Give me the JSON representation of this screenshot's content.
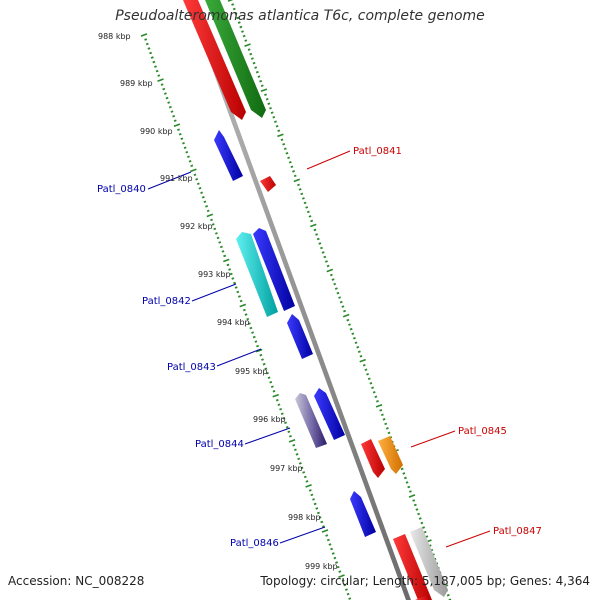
{
  "title": "Pseudoalteromonas atlantica T6c, complete genome",
  "footer": {
    "accession": "Accession: NC_008228",
    "summary": "Topology: circular; Length: 5,187,005 bp; Genes: 4,364"
  },
  "colors": {
    "backbone": "#8a8a8a",
    "tick": "#2a8a2a",
    "label_forward": "#cc0000",
    "label_reverse": "#0000aa"
  },
  "scale_ticks": [
    "988 kbp",
    "989 kbp",
    "990 kbp",
    "991 kbp",
    "992 kbp",
    "993 kbp",
    "994 kbp",
    "995 kbp",
    "996 kbp",
    "997 kbp",
    "998 kbp",
    "999 kbp"
  ],
  "gene_labels": [
    {
      "text": "Patl_0840",
      "strand": "reverse"
    },
    {
      "text": "Patl_0841",
      "strand": "forward"
    },
    {
      "text": "Patl_0842",
      "strand": "reverse"
    },
    {
      "text": "Patl_0843",
      "strand": "reverse"
    },
    {
      "text": "Patl_0844",
      "strand": "reverse"
    },
    {
      "text": "Patl_0845",
      "strand": "forward"
    },
    {
      "text": "Patl_0846",
      "strand": "reverse"
    },
    {
      "text": "Patl_0847",
      "strand": "forward"
    }
  ],
  "features": [
    {
      "name": "red-gene-top",
      "color": "#dd0000"
    },
    {
      "name": "green-gene-top",
      "color": "#1a8a1a"
    },
    {
      "name": "Patl_0840",
      "color": "#0000cc"
    },
    {
      "name": "Patl_0841",
      "color": "#dd0000"
    },
    {
      "name": "Patl_0842",
      "color": "#00c4c4"
    },
    {
      "name": "blue-gene-0842b",
      "color": "#0000cc"
    },
    {
      "name": "Patl_0843",
      "color": "#0000cc"
    },
    {
      "name": "Patl_0844",
      "color": "#4a3a8a"
    },
    {
      "name": "blue-gene-0844b",
      "color": "#0000cc"
    },
    {
      "name": "Patl_0845",
      "color": "#dd0000"
    },
    {
      "name": "orange-gene",
      "color": "#f08c00"
    },
    {
      "name": "Patl_0846",
      "color": "#0000cc"
    },
    {
      "name": "Patl_0847",
      "color": "#dd0000"
    },
    {
      "name": "grey-gene",
      "color": "#b0b0b0"
    }
  ]
}
